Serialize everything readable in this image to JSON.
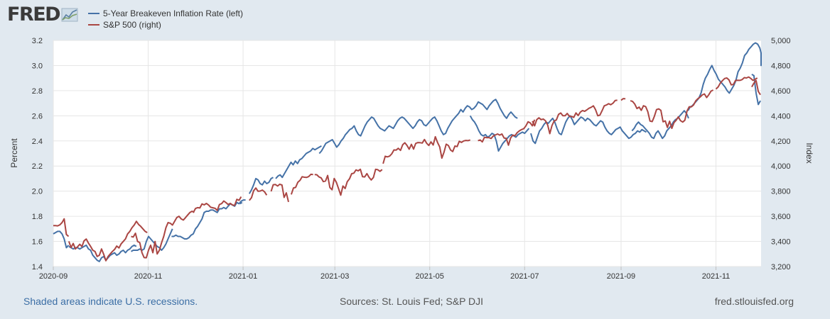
{
  "brand": {
    "logo_text": "FRED",
    "logo_icon": "chart-line-icon"
  },
  "colors": {
    "bei": "#4572a7",
    "spx": "#aa4643",
    "grid": "#e6e6e6",
    "axis_text": "#333333",
    "background": "#e1e9f0",
    "plot_bg": "#ffffff"
  },
  "footer": {
    "recession_note": "Shaded areas indicate U.S. recessions.",
    "sources": "Sources: St. Louis Fed; S&P DJI",
    "site": "fred.stlouisfed.org"
  },
  "chart_data": {
    "type": "line",
    "x_range": [
      "2020-09-01",
      "2021-11-30"
    ],
    "x_ticks": [
      {
        "date": "2020-09-01",
        "label": "2020-09"
      },
      {
        "date": "2020-11-01",
        "label": "2020-11"
      },
      {
        "date": "2021-01-01",
        "label": "2021-01"
      },
      {
        "date": "2021-03-01",
        "label": "2021-03"
      },
      {
        "date": "2021-05-01",
        "label": "2021-05"
      },
      {
        "date": "2021-07-01",
        "label": "2021-07"
      },
      {
        "date": "2021-09-01",
        "label": "2021-09"
      },
      {
        "date": "2021-11-01",
        "label": "2021-11"
      }
    ],
    "y_left": {
      "label": "Percent",
      "min": 1.4,
      "max": 3.2,
      "ticks": [
        1.4,
        1.6,
        1.8,
        2.0,
        2.2,
        2.4,
        2.6,
        2.8,
        3.0,
        3.2
      ],
      "tick_labels": [
        "1.4",
        "1.6",
        "1.8",
        "2.0",
        "2.2",
        "2.4",
        "2.6",
        "2.8",
        "3.0",
        "3.2"
      ]
    },
    "y_right": {
      "label": "Index",
      "min": 3200,
      "max": 5000,
      "ticks": [
        3200,
        3400,
        3600,
        3800,
        4000,
        4200,
        4400,
        4600,
        4800,
        5000
      ],
      "tick_labels": [
        "3,200",
        "3,400",
        "3,600",
        "3,800",
        "4,000",
        "4,200",
        "4,400",
        "4,600",
        "4,800",
        "5,000"
      ]
    },
    "series": [
      {
        "name": "5-Year Breakeven Inflation Rate (left)",
        "axis": "left",
        "segments": [
          {
            "start": "2020-09-01",
            "values": [
              1.66,
              1.67,
              1.68,
              1.68,
              1.66,
              1.62,
              1.55,
              1.57
            ]
          },
          {
            "start": "2020-09-11",
            "values": [
              1.56,
              1.55,
              1.54,
              1.55,
              1.55,
              1.54,
              1.55,
              1.56,
              1.57,
              1.54,
              1.53,
              1.49,
              1.47,
              1.45,
              1.44,
              1.47,
              1.48,
              1.45,
              1.47,
              1.49,
              1.5,
              1.51,
              1.49,
              1.5,
              1.52,
              1.53,
              1.51,
              1.53,
              1.54,
              1.56,
              1.57,
              1.56
            ]
          },
          {
            "start": "2020-10-21",
            "values": [
              1.52,
              1.53,
              1.53,
              1.53,
              1.54,
              1.53,
              1.54,
              1.6,
              1.64,
              1.62,
              1.6,
              1.58,
              1.56,
              1.55,
              1.53,
              1.55,
              1.58,
              1.62,
              1.66,
              1.7
            ]
          },
          {
            "start": "2020-11-16",
            "values": [
              1.64,
              1.64,
              1.65,
              1.64,
              1.64,
              1.63,
              1.62,
              1.62,
              1.63,
              1.65,
              1.66,
              1.7,
              1.72,
              1.75,
              1.78,
              1.83,
              1.84,
              1.84,
              1.85,
              1.85,
              1.84,
              1.83,
              1.86,
              1.86,
              1.87,
              1.86,
              1.88,
              1.9,
              1.89,
              1.88,
              1.91,
              1.9,
              1.92,
              1.93,
              1.93
            ]
          },
          {
            "start": "2020-12-30",
            "values": [
              1.9,
              1.91
            ]
          },
          {
            "start": "2021-01-05",
            "values": [
              1.98,
              2.01,
              2.05,
              2.1,
              2.09,
              2.06,
              2.05,
              2.08,
              2.06,
              2.07,
              2.1,
              2.11
            ]
          },
          {
            "start": "2021-01-22",
            "values": [
              2.1,
              2.12,
              2.13,
              2.11,
              2.14,
              2.17,
              2.2,
              2.23,
              2.21,
              2.24,
              2.22,
              2.25,
              2.26,
              2.28,
              2.3,
              2.31,
              2.32,
              2.34,
              2.33,
              2.34,
              2.35,
              2.36
            ]
          },
          {
            "start": "2021-02-19",
            "values": [
              2.3,
              2.32,
              2.35,
              2.38,
              2.39,
              2.4,
              2.41,
              2.38,
              2.35,
              2.37,
              2.4,
              2.42,
              2.45,
              2.47,
              2.49,
              2.5,
              2.52,
              2.48,
              2.45,
              2.44,
              2.48,
              2.52,
              2.55,
              2.57,
              2.59,
              2.58,
              2.55,
              2.52,
              2.5,
              2.49,
              2.48,
              2.5,
              2.52,
              2.51,
              2.5,
              2.53,
              2.56,
              2.58,
              2.59,
              2.58,
              2.56,
              2.54,
              2.52,
              2.5,
              2.52,
              2.55,
              2.57,
              2.56,
              2.53,
              2.52,
              2.54,
              2.56,
              2.58,
              2.59,
              2.56,
              2.52,
              2.48,
              2.45,
              2.46,
              2.5,
              2.53,
              2.56,
              2.58,
              2.6,
              2.62,
              2.65,
              2.63,
              2.66,
              2.68,
              2.67,
              2.65,
              2.66,
              2.68,
              2.71,
              2.7,
              2.69,
              2.67,
              2.65,
              2.68,
              2.7,
              2.72,
              2.73,
              2.7,
              2.66,
              2.63,
              2.6,
              2.58,
              2.61,
              2.63,
              2.61,
              2.59,
              2.58
            ]
          },
          {
            "start": "2021-05-27",
            "values": [
              2.6,
              2.57,
              2.55,
              2.52,
              2.48,
              2.45,
              2.44,
              2.45,
              2.43,
              2.44,
              2.46,
              2.45,
              2.4,
              2.32,
              2.35,
              2.38,
              2.4,
              2.42,
              2.44,
              2.45,
              2.44,
              2.43,
              2.45,
              2.46,
              2.47,
              2.46,
              2.48,
              2.5
            ]
          },
          {
            "start": "2021-07-05",
            "values": [
              2.46,
              2.4,
              2.38,
              2.43,
              2.48,
              2.5,
              2.53,
              2.55,
              2.54,
              2.56,
              2.58,
              2.55,
              2.5,
              2.46,
              2.45,
              2.5,
              2.55,
              2.58,
              2.6,
              2.57,
              2.53,
              2.55,
              2.57,
              2.59,
              2.58,
              2.56,
              2.58,
              2.57,
              2.55,
              2.53,
              2.52,
              2.54,
              2.56,
              2.55,
              2.51,
              2.48,
              2.46,
              2.45,
              2.47,
              2.49,
              2.5,
              2.51,
              2.48,
              2.46,
              2.44,
              2.42,
              2.43,
              2.45,
              2.46,
              2.48,
              2.47,
              2.49,
              2.48,
              2.47
            ]
          },
          {
            "start": "2021-09-08",
            "values": [
              2.48,
              2.5,
              2.53,
              2.55,
              2.53,
              2.52,
              2.5,
              2.48,
              2.46,
              2.43,
              2.42,
              2.46,
              2.48,
              2.45,
              2.42,
              2.44,
              2.48,
              2.5,
              2.52,
              2.55,
              2.57,
              2.58,
              2.6,
              2.62,
              2.64,
              2.62,
              2.58
            ]
          },
          {
            "start": "2021-10-14",
            "values": [
              2.64,
              2.67,
              2.68,
              2.7,
              2.72,
              2.74,
              2.78,
              2.85,
              2.9,
              2.93,
              2.97,
              3.0,
              2.96,
              2.93,
              2.89,
              2.87,
              2.85,
              2.83,
              2.8,
              2.78,
              2.81,
              2.84,
              2.88,
              2.95,
              2.98,
              3.02,
              3.08,
              3.1,
              3.13,
              3.15,
              3.17,
              3.18,
              3.17,
              3.14,
              3.1,
              3.04,
              3.02,
              3.0,
              3.03
            ]
          },
          {
            "start": "2021-11-24",
            "values": [
              2.93,
              2.92,
              2.78,
              2.69,
              2.72
            ]
          }
        ]
      },
      {
        "name": "S&P 500 (right)",
        "axis": "right",
        "segments": [
          {
            "start": "2020-09-01",
            "values": [
              3526,
              3526,
              3524,
              3532,
              3550,
              3580,
              3455,
              3440
            ]
          },
          {
            "start": "2020-09-11",
            "values": [
              3401,
              3351,
              3384,
              3340,
              3357,
              3377,
              3359,
              3405,
              3419,
              3386,
              3360,
              3330,
              3320,
              3280,
              3290,
              3340,
              3298,
              3246,
              3280,
              3300,
              3320,
              3336,
              3363,
              3348,
              3380,
              3400,
              3420,
              3460,
              3480,
              3510,
              3530,
              3560,
              3535,
              3520,
              3500,
              3480,
              3470
            ]
          },
          {
            "start": "2020-10-21",
            "values": [
              3440,
              3435,
              3465,
              3400,
              3390,
              3310,
              3271,
              3270,
              3330,
              3370,
              3310,
              3400,
              3300,
              3330,
              3390,
              3440,
              3510,
              3550,
              3545,
              3530,
              3560,
              3590,
              3600,
              3580,
              3570,
              3590,
              3610,
              3630,
              3640,
              3630
            ]
          },
          {
            "start": "2020-11-30",
            "values": [
              3630,
              3662,
              3669,
              3666,
              3699,
              3691,
              3702,
              3690,
              3672,
              3668,
              3663,
              3647,
              3694,
              3701,
              3722,
              3709,
              3694,
              3703,
              3690,
              3687,
              3735,
              3727,
              3756
            ]
          },
          {
            "start": "2021-01-05",
            "values": [
              3726,
              3748,
              3803,
              3825,
              3799,
              3801,
              3809,
              3795,
              3768
            ]
          },
          {
            "start": "2021-01-19",
            "values": [
              3798,
              3851,
              3853,
              3841,
              3855,
              3849,
              3750,
              3787,
              3714
            ]
          },
          {
            "start": "2021-02-01",
            "values": [
              3774,
              3826,
              3830,
              3871,
              3886,
              3915,
              3911,
              3909,
              3916,
              3934,
              3932
            ]
          },
          {
            "start": "2021-02-16",
            "values": [
              3932,
              3931,
              3913,
              3906,
              3876,
              3881,
              3925,
              3829,
              3811,
              3901,
              3870,
              3819,
              3768,
              3841,
              3821,
              3876,
              3898,
              3939,
              3943,
              3969,
              3962,
              3974,
              3915,
              3913,
              3940,
              3910,
              3889,
              3909,
              3974,
              3971,
              3958,
              3972
            ]
          },
          {
            "start": "2021-04-01",
            "values": [
              4019,
              4078,
              4073,
              4079,
              4097,
              4128,
              4127,
              4141,
              4124,
              4170,
              4185,
              4163,
              4134,
              4173,
              4135,
              4180,
              4187,
              4186,
              4183,
              4211,
              4181,
              4164,
              4192,
              4167,
              4233,
              4188,
              4152,
              4063,
              4112,
              4174,
              4163,
              4127,
              4115,
              4159,
              4155,
              4197,
              4188,
              4200,
              4204,
              4202,
              4208
            ]
          },
          {
            "start": "2021-06-01",
            "values": [
              4202,
              4208,
              4192,
              4229,
              4226,
              4227,
              4219,
              4239,
              4247,
              4255,
              4246,
              4255,
              4223,
              4221,
              4166,
              4224,
              4246,
              4241,
              4266,
              4280,
              4290,
              4297,
              4319,
              4352,
              4343,
              4320,
              4369
            ]
          },
          {
            "start": "2021-07-06",
            "values": [
              4358,
              4320,
              4369,
              4384,
              4369,
              4374,
              4360,
              4327,
              4258,
              4323,
              4359,
              4367,
              4411,
              4422,
              4401,
              4400,
              4419,
              4395,
              4395,
              4387,
              4423,
              4402,
              4429,
              4442,
              4436,
              4447,
              4460,
              4468,
              4479,
              4448,
              4400,
              4405,
              4441,
              4479,
              4486,
              4496,
              4488,
              4500,
              4522,
              4524
            ]
          },
          {
            "start": "2021-09-01",
            "values": [
              4524,
              4537,
              4535
            ]
          },
          {
            "start": "2021-09-07",
            "values": [
              4520,
              4514,
              4493,
              4458,
              4469,
              4443,
              4480,
              4473,
              4433,
              4358,
              4354,
              4395,
              4449,
              4455,
              4443,
              4352,
              4359,
              4307,
              4357,
              4300,
              4345,
              4364,
              4391,
              4361,
              4350,
              4364,
              4438,
              4472,
              4471,
              4486,
              4519,
              4536,
              4549,
              4566,
              4574,
              4545,
              4567,
              4596,
              4605
            ]
          },
          {
            "start": "2021-11-01",
            "values": [
              4613,
              4630,
              4660,
              4680,
              4697,
              4701,
              4685,
              4646,
              4649,
              4682,
              4683,
              4682,
              4688,
              4704,
              4701,
              4709,
              4697,
              4682,
              4690,
              4701
            ]
          },
          {
            "start": "2021-11-24",
            "values": [
              4630,
              4660,
              4680,
              4594,
              4567
            ]
          }
        ]
      }
    ]
  }
}
